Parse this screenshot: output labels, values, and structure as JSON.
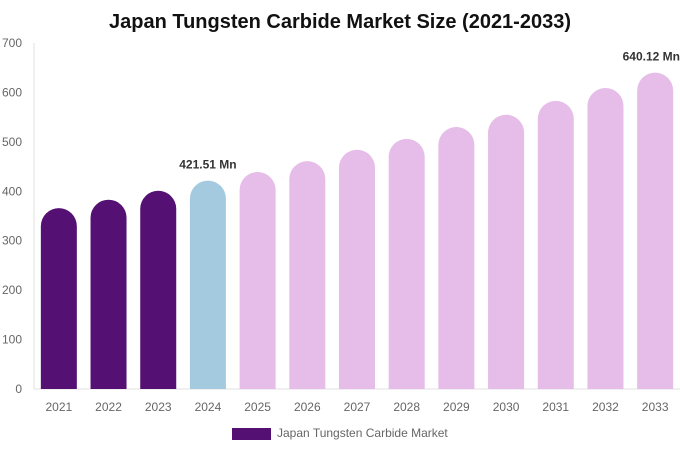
{
  "chart_data": {
    "type": "bar",
    "title": "Japan Tungsten Carbide Market Size (2021-2033)",
    "xlabel": "",
    "ylabel": "",
    "ylim": [
      0,
      700
    ],
    "yticks": [
      "0",
      "100",
      "200",
      "300",
      "400",
      "500",
      "600",
      "700"
    ],
    "grid": false,
    "legend_position": "bottom",
    "categories": [
      "2021",
      "2022",
      "2023",
      "2024",
      "2025",
      "2026",
      "2027",
      "2028",
      "2029",
      "2030",
      "2031",
      "2032",
      "2033"
    ],
    "series": [
      {
        "name": "Japan Tungsten Carbide Market",
        "values": [
          366,
          383,
          401,
          421.51,
          439,
          461,
          484,
          506,
          530,
          555,
          583,
          609,
          640.12
        ]
      }
    ],
    "bar_colors": {
      "historical": "#541173",
      "base_year": "#a3cadf",
      "forecast": "#e6bce8"
    },
    "data_labels": [
      {
        "category": "2024",
        "text": "421.51 Mn"
      },
      {
        "category": "2033",
        "text": "640.12 Mn"
      }
    ]
  }
}
